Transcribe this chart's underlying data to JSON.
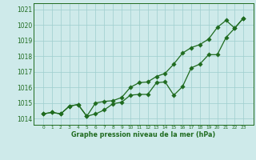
{
  "x": [
    0,
    1,
    2,
    3,
    4,
    5,
    6,
    7,
    8,
    9,
    10,
    11,
    12,
    13,
    14,
    15,
    16,
    17,
    18,
    19,
    20,
    21,
    22,
    23
  ],
  "line_hourly": [
    1014.3,
    1014.4,
    1014.3,
    1014.8,
    1014.9,
    1014.15,
    1014.3,
    1014.55,
    1014.95,
    1015.05,
    1015.5,
    1015.55,
    1015.55,
    1016.3,
    1016.35,
    1015.5,
    1016.05,
    1017.25,
    1017.5,
    1018.1,
    1018.1,
    1019.2,
    1019.8,
    1020.45
  ],
  "line_smooth": [
    1014.3,
    1014.4,
    1014.3,
    1014.8,
    1014.9,
    1014.15,
    1015.0,
    1015.1,
    1015.15,
    1015.35,
    1016.0,
    1016.3,
    1016.35,
    1016.7,
    1016.9,
    1017.5,
    1018.2,
    1018.55,
    1018.75,
    1019.1,
    1019.85,
    1020.3,
    1019.8,
    1020.45
  ],
  "ylim_min": 1013.6,
  "ylim_max": 1021.4,
  "yticks": [
    1014,
    1015,
    1016,
    1017,
    1018,
    1019,
    1020,
    1021
  ],
  "xtick_labels": [
    "0",
    "1",
    "2",
    "3",
    "4",
    "5",
    "6",
    "7",
    "8",
    "9",
    "10",
    "11",
    "12",
    "13",
    "14",
    "15",
    "16",
    "17",
    "18",
    "19",
    "20",
    "21",
    "22",
    "23"
  ],
  "xlabel": "Graphe pression niveau de la mer (hPa)",
  "line_color": "#1f6b1f",
  "bg_color": "#ceeaea",
  "grid_color": "#9ecece",
  "text_color": "#1f6b1f",
  "marker_size": 2.8,
  "linewidth": 0.9
}
